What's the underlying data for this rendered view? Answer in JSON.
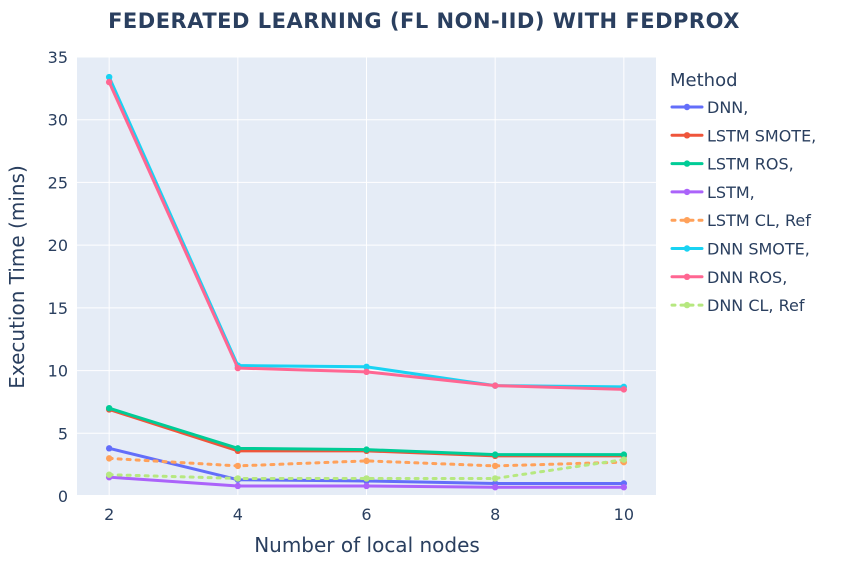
{
  "chart_data": {
    "type": "line",
    "title": "FEDERATED LEARNING (FL NON-IID) WITH FEDPROX",
    "xlabel": "Number of local nodes",
    "ylabel": "Execution Time (mins)",
    "x": [
      2,
      4,
      6,
      8,
      10
    ],
    "xlim": [
      1.5,
      10.5
    ],
    "ylim": [
      0,
      35
    ],
    "xticks": [
      2,
      4,
      6,
      8,
      10
    ],
    "yticks": [
      0,
      5,
      10,
      15,
      20,
      25,
      30,
      35
    ],
    "grid": true,
    "plot_background": "#e5ecf6",
    "legend": {
      "title": "Method",
      "placement": "right"
    },
    "series": [
      {
        "name": "DNN,",
        "color": "#636efa",
        "dash": "solid",
        "values": [
          3.8,
          1.3,
          1.2,
          1.0,
          1.0
        ]
      },
      {
        "name": "LSTM SMOTE,",
        "color": "#ef553b",
        "dash": "solid",
        "values": [
          6.9,
          3.6,
          3.6,
          3.2,
          3.2
        ]
      },
      {
        "name": "LSTM ROS,",
        "color": "#00cc96",
        "dash": "solid",
        "values": [
          7.0,
          3.8,
          3.7,
          3.3,
          3.3
        ]
      },
      {
        "name": "LSTM,",
        "color": "#ab63fa",
        "dash": "solid",
        "values": [
          1.5,
          0.8,
          0.8,
          0.7,
          0.7
        ]
      },
      {
        "name": "LSTM CL, Ref",
        "color": "#ffa15a",
        "dash": "dot",
        "values": [
          3.0,
          2.4,
          2.8,
          2.4,
          2.7
        ]
      },
      {
        "name": "DNN SMOTE,",
        "color": "#19d3f3",
        "dash": "solid",
        "values": [
          33.4,
          10.4,
          10.3,
          8.8,
          8.7
        ]
      },
      {
        "name": "DNN ROS,",
        "color": "#ff6692",
        "dash": "solid",
        "values": [
          33.0,
          10.2,
          9.9,
          8.8,
          8.5
        ]
      },
      {
        "name": "DNN CL, Ref",
        "color": "#b6e880",
        "dash": "dot",
        "values": [
          1.7,
          1.4,
          1.4,
          1.4,
          2.9
        ]
      }
    ]
  }
}
